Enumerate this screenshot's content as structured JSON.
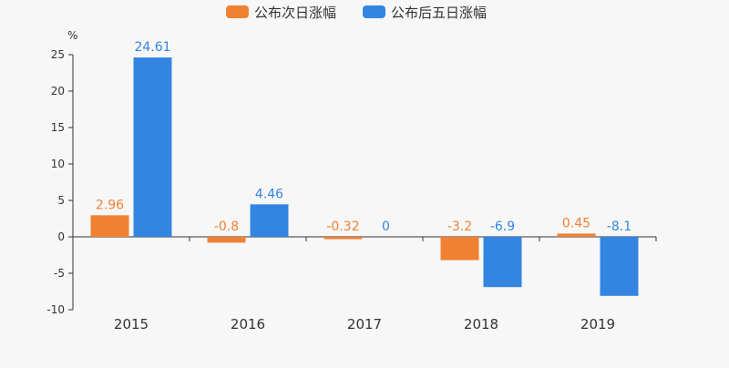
{
  "chart_data": {
    "type": "bar",
    "unit_label": "%",
    "categories": [
      "2015",
      "2016",
      "2017",
      "2018",
      "2019"
    ],
    "series": [
      {
        "name": "公布次日涨幅",
        "color": "#f08132",
        "values": [
          2.96,
          -0.8,
          -0.32,
          -3.2,
          0.45
        ],
        "labels": [
          "2.96",
          "-0.8",
          "-0.32",
          "-3.2",
          "0.45"
        ]
      },
      {
        "name": "公布后五日涨幅",
        "color": "#3385e1",
        "values": [
          24.61,
          4.46,
          0,
          -6.9,
          -8.1
        ],
        "labels": [
          "24.61",
          "4.46",
          "0",
          "-6.9",
          "-8.1"
        ]
      }
    ],
    "ylim": [
      -10,
      25
    ],
    "yticks": [
      25,
      20,
      15,
      10,
      5,
      0,
      -5,
      -10
    ],
    "legend_position": "top-center",
    "grid": false
  }
}
